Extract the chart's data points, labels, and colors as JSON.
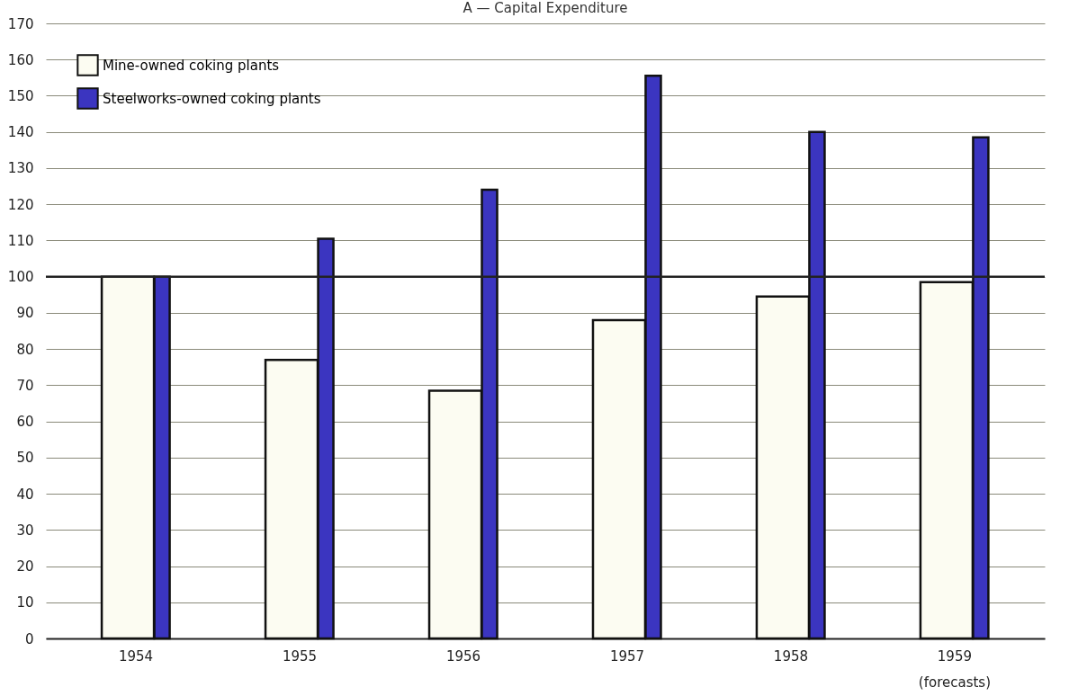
{
  "chart_data": {
    "type": "bar",
    "title": "A — Capital Expenditure",
    "categories": [
      "1954",
      "1955",
      "1956",
      "1957",
      "1958",
      "1959"
    ],
    "series": [
      {
        "name": "Mine-owned coking plants",
        "color": "#fcfcf2",
        "values": [
          100,
          77,
          68.5,
          88,
          94.5,
          98.5
        ]
      },
      {
        "name": "Steelworks-owned coking plants",
        "color": "#3b35c0",
        "values": [
          100,
          110.5,
          124,
          155.5,
          140,
          138.5
        ]
      }
    ],
    "ylim": [
      0,
      170
    ],
    "yticks": [
      0,
      10,
      20,
      30,
      40,
      50,
      60,
      70,
      80,
      90,
      100,
      110,
      120,
      130,
      140,
      150,
      160,
      170
    ],
    "grid": "y",
    "legend": "top left",
    "ref_lines": [
      {
        "axis": "y",
        "value": 100,
        "color": "#222222"
      }
    ],
    "annotations": [
      "(forecasts)"
    ]
  }
}
